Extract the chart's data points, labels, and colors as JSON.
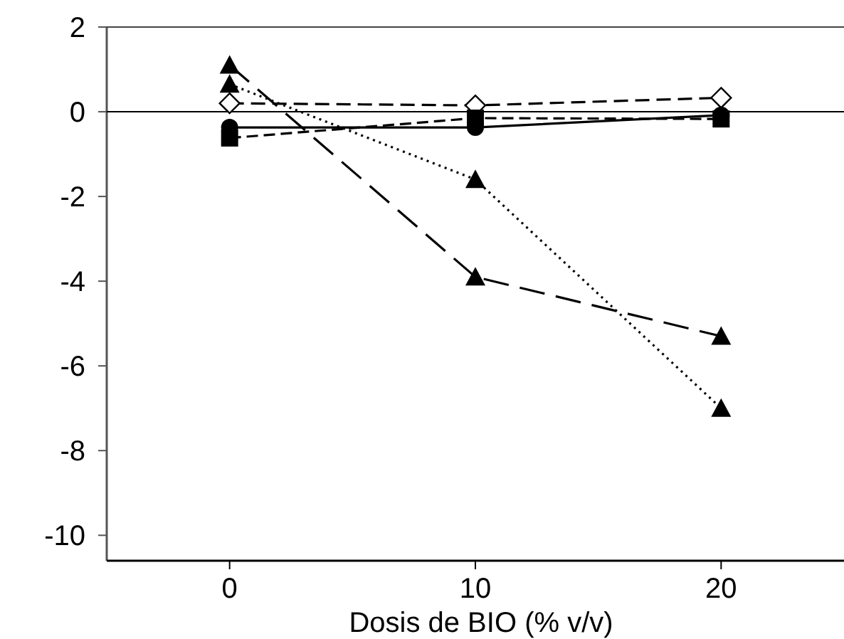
{
  "chart_data": {
    "type": "line",
    "xlim": [
      -5,
      25
    ],
    "xticks": [
      0,
      10,
      20
    ],
    "ylim": [
      -10.6,
      2
    ],
    "yticks": [
      -10,
      -8,
      -6,
      -4,
      -2,
      0,
      2
    ],
    "xlabel": "Dosis de BIO (% v/v)",
    "series": [
      {
        "color": "#000000",
        "marker": "circle",
        "line_style": "solid",
        "x": [
          0,
          10,
          20
        ],
        "values": [
          -0.37,
          -0.37,
          -0.08
        ]
      },
      {
        "color": "#000000",
        "marker": "square",
        "line_style": "dashed",
        "x": [
          0,
          10,
          20
        ],
        "values": [
          -0.62,
          -0.15,
          -0.17
        ]
      },
      {
        "color": "#000000",
        "marker": "diamond",
        "line_style": "dashed",
        "x": [
          0,
          10,
          20
        ],
        "values": [
          0.2,
          0.15,
          0.33
        ]
      },
      {
        "color": "#000000",
        "marker": "triangle",
        "line_style": "dotted",
        "x": [
          0,
          10,
          20
        ],
        "values": [
          0.65,
          -1.6,
          -7.0
        ]
      },
      {
        "color": "#000000",
        "marker": "triangle",
        "line_style": "dashed",
        "x": [
          0,
          10,
          20
        ],
        "values": [
          1.1,
          -3.9,
          -5.3
        ]
      }
    ],
    "ref_lines": [
      {
        "axis": "y",
        "value": 0,
        "color": "#000000"
      }
    ]
  }
}
